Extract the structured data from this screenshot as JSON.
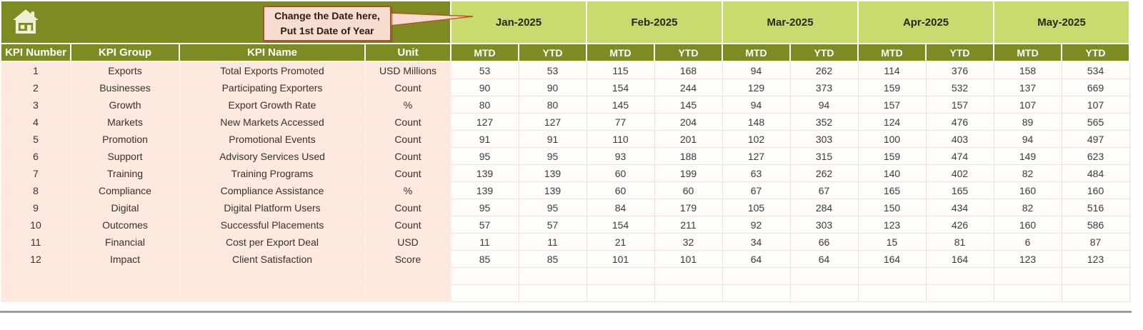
{
  "callout": {
    "line1": "Change the Date here,",
    "line2": "Put 1st Date of Year"
  },
  "months": [
    "Jan-2025",
    "Feb-2025",
    "Mar-2025",
    "Apr-2025",
    "May-2025"
  ],
  "table": {
    "headers": [
      "KPI Number",
      "KPI Group",
      "KPI Name",
      "Unit"
    ],
    "sub_headers": [
      "MTD",
      "YTD"
    ],
    "rows": [
      {
        "number": "1",
        "group": "Exports",
        "name": "Total Exports Promoted",
        "unit": "USD Millions",
        "values": [
          53,
          53,
          115,
          168,
          94,
          262,
          114,
          376,
          158,
          534
        ]
      },
      {
        "number": "2",
        "group": "Businesses",
        "name": "Participating Exporters",
        "unit": "Count",
        "values": [
          90,
          90,
          154,
          244,
          129,
          373,
          159,
          532,
          137,
          669
        ]
      },
      {
        "number": "3",
        "group": "Growth",
        "name": "Export Growth Rate",
        "unit": "%",
        "values": [
          80,
          80,
          145,
          145,
          94,
          94,
          157,
          157,
          107,
          107
        ]
      },
      {
        "number": "4",
        "group": "Markets",
        "name": "New Markets Accessed",
        "unit": "Count",
        "values": [
          127,
          127,
          77,
          204,
          148,
          352,
          124,
          476,
          89,
          565
        ]
      },
      {
        "number": "5",
        "group": "Promotion",
        "name": "Promotional Events",
        "unit": "Count",
        "values": [
          91,
          91,
          110,
          201,
          102,
          303,
          100,
          403,
          94,
          497
        ]
      },
      {
        "number": "6",
        "group": "Support",
        "name": "Advisory Services Used",
        "unit": "Count",
        "values": [
          95,
          95,
          93,
          188,
          127,
          315,
          159,
          474,
          149,
          623
        ]
      },
      {
        "number": "7",
        "group": "Training",
        "name": "Training Programs",
        "unit": "Count",
        "values": [
          139,
          139,
          60,
          199,
          63,
          262,
          140,
          402,
          82,
          484
        ]
      },
      {
        "number": "8",
        "group": "Compliance",
        "name": "Compliance Assistance",
        "unit": "%",
        "values": [
          139,
          139,
          60,
          60,
          67,
          67,
          165,
          165,
          160,
          160
        ]
      },
      {
        "number": "9",
        "group": "Digital",
        "name": "Digital Platform Users",
        "unit": "Count",
        "values": [
          95,
          95,
          84,
          179,
          105,
          284,
          150,
          434,
          82,
          516
        ]
      },
      {
        "number": "10",
        "group": "Outcomes",
        "name": "Successful Placements",
        "unit": "Count",
        "values": [
          57,
          57,
          154,
          211,
          92,
          303,
          123,
          426,
          160,
          586
        ]
      },
      {
        "number": "11",
        "group": "Financial",
        "name": "Cost per Export Deal",
        "unit": "USD",
        "values": [
          11,
          11,
          21,
          32,
          34,
          66,
          15,
          81,
          6,
          87
        ]
      },
      {
        "number": "12",
        "group": "Impact",
        "name": "Client Satisfaction",
        "unit": "Score",
        "values": [
          85,
          85,
          101,
          101,
          64,
          64,
          164,
          164,
          123,
          123
        ]
      }
    ],
    "empty_rows": 2
  },
  "icons": {
    "home": "home-icon"
  },
  "colors": {
    "olive": "#7e8b22",
    "month-green": "#c9db6e",
    "pink": "#fce8dc",
    "cell-bg": "#fffefb",
    "grid-tan": "#f2e0d2",
    "pink-grid": "#fdf1e8",
    "callout-bg": "#f8dccf",
    "callout-border": "#a3562b",
    "gray-line": "#9b9b9b",
    "header-text": "#ffffff",
    "text-dark": "#3a3a3a"
  }
}
